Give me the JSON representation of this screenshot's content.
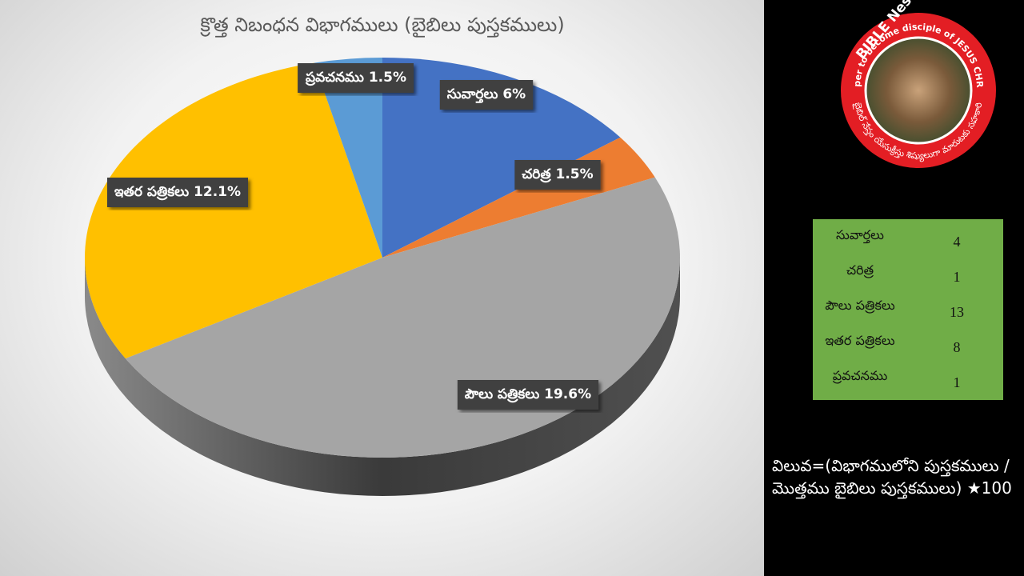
{
  "chart_data": {
    "type": "pie",
    "title": "క్రొత్త నిబంధన విభాగములు (బైబిలు పుస్తకములు)",
    "categories": [
      "సువార్తలు",
      "చరిత్ర",
      "పౌలు పత్రికలు",
      "ఇతర పత్రికలు",
      "ప్రవచనము"
    ],
    "values": [
      6,
      1.5,
      19.6,
      12.1,
      1.5
    ],
    "value_labels": [
      "6%",
      "1.5%",
      "19.6%",
      "12.1%",
      "1.5%"
    ],
    "colors": [
      "#4472c4",
      "#ed7d31",
      "#a5a5a5",
      "#ffc000",
      "#5b9bd5"
    ]
  },
  "logo": {
    "title": "BIBLE Nestam",
    "tagline": "Helper to become disciple of JESUS CHRIST",
    "telugu": "బైబిల్ నేస్తం యేసుక్రీస్తు శిష్యులుగా మారుటకు సహకారి"
  },
  "table": {
    "rows": [
      [
        "సువార్తలు",
        4
      ],
      [
        "చరిత్ర",
        1
      ],
      [
        "పౌలు పత్రికలు",
        13
      ],
      [
        "ఇతర పత్రికలు",
        8
      ],
      [
        "ప్రవచనము",
        1
      ]
    ]
  },
  "formula": "విలువ=(విభాగములోని పుస్తకములు / మొత్తము బైబిలు పుస్తకములు) ★100"
}
